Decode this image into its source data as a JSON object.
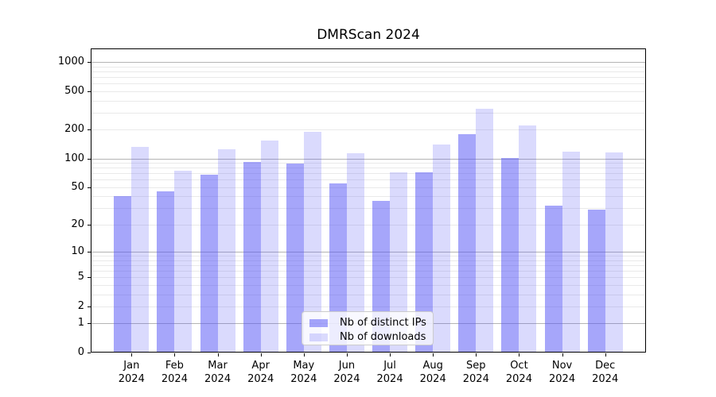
{
  "title": "DMRScan 2024",
  "legend": {
    "items": [
      {
        "label": "Nb of distinct IPs"
      },
      {
        "label": "Nb of downloads"
      }
    ]
  },
  "chart_data": {
    "type": "bar",
    "title": "DMRScan 2024",
    "categories": [
      "Jan 2024",
      "Feb 2024",
      "Mar 2024",
      "Apr 2024",
      "May 2024",
      "Jun 2024",
      "Jul 2024",
      "Aug 2024",
      "Sep 2024",
      "Oct 2024",
      "Nov 2024",
      "Dec 2024"
    ],
    "series": [
      {
        "name": "Nb of distinct IPs",
        "color": "rgba(85,85,245,0.52)",
        "values": [
          40,
          45,
          68,
          91,
          89,
          55,
          36,
          71,
          180,
          102,
          32,
          29
        ]
      },
      {
        "name": "Nb of downloads",
        "color": "rgba(85,85,245,0.22)",
        "values": [
          133,
          75,
          124,
          154,
          189,
          114,
          72,
          140,
          325,
          219,
          118,
          115
        ]
      }
    ],
    "yscale": "log1p",
    "ylim": [
      0,
      1380
    ],
    "yticks": [
      1000,
      500,
      200,
      100,
      50,
      20,
      10,
      5,
      2,
      1,
      0
    ],
    "grid": {
      "major": [
        1,
        10,
        100,
        1000
      ],
      "minor": [
        2,
        3,
        4,
        5,
        6,
        7,
        8,
        9,
        20,
        30,
        40,
        50,
        60,
        70,
        80,
        90,
        200,
        300,
        400,
        500,
        600,
        700,
        800,
        900
      ],
      "major_color": "#b4b4b4",
      "minor_color": "#e9e9e9"
    },
    "legend_position": "lower center"
  }
}
